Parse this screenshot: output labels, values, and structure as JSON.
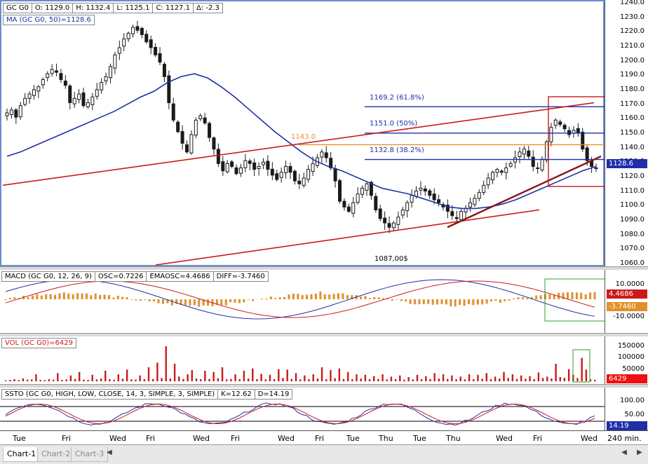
{
  "price_header": {
    "symbol": "GC G0",
    "open": "O: 1129.0",
    "high": "H: 1132.4",
    "low": "L: 1125.1",
    "close": "C: 1127.1",
    "change": "Δ: -2.3"
  },
  "ma_label": "MA (GC G0, 50)=1128.6",
  "fib": {
    "f618": "1169.2 (61.8%)",
    "f50": "1151.0 (50%)",
    "f382": "1132.8 (38.2%)",
    "level": "1143.0",
    "low_label": "1087,00$"
  },
  "price_axis": {
    "ticks": [
      "1240.0",
      "1230.0",
      "1220.0",
      "1210.0",
      "1200.0",
      "1190.0",
      "1180.0",
      "1170.0",
      "1160.0",
      "1150.0",
      "1140.0",
      "1130.0",
      "1120.0",
      "1110.0",
      "1100.0",
      "1090.0",
      "1080.0",
      "1070.0",
      "1060.0"
    ],
    "last": "1128.6"
  },
  "macd": {
    "header": [
      "MACD (GC G0, 12, 26, 9)",
      "OSC=0.7226",
      "EMAOSC=4.4686",
      "DIFF=-3.7460"
    ],
    "ticks": [
      "10.0000",
      "-10.0000"
    ],
    "tag_pos": "4.4686",
    "tag_neg": "-3.7460"
  },
  "vol": {
    "header": "VOL (GC G0)=6429",
    "ticks": [
      "150000",
      "100000",
      "50000"
    ],
    "tag": "6429"
  },
  "ssto": {
    "header": [
      "SSTO (GC G0, HIGH, LOW, CLOSE, 14, 3, SIMPLE, 3, SIMPLE)",
      "K=12.62",
      "D=14.19"
    ],
    "ticks": [
      "100.00",
      "50.00"
    ],
    "tag": "14.19"
  },
  "x_axis": {
    "labels": [
      "Tue",
      "Fri",
      "Wed",
      "Fri",
      "Wed",
      "Fri",
      "Wed",
      "Fri",
      "Tue",
      "Thu",
      "Tue",
      "Thu",
      "Wed",
      "Fri",
      "Wed"
    ],
    "interval": "240 min."
  },
  "tabs": [
    "Chart-1",
    "Chart-2",
    "Chart-3"
  ],
  "colors": {
    "candle": "#1a1a1a",
    "ma": "#1f2fa8",
    "trend": "#cc1a1a",
    "fib_blue": "#1c2fb0",
    "fib_orange": "#f08c28",
    "vol_bar": "#cc1a1a",
    "macd_hist": "#e0902a",
    "highlight": "#cc1a1a",
    "highlight_green": "#2aa02a"
  },
  "chart_data": {
    "type": "candlestick",
    "symbol": "GC G0",
    "interval": "240 min.",
    "ylim": [
      1060,
      1240
    ],
    "close_series": [
      1165,
      1167,
      1162,
      1170,
      1175,
      1178,
      1181,
      1183,
      1188,
      1192,
      1195,
      1193,
      1188,
      1184,
      1172,
      1175,
      1178,
      1170,
      1172,
      1176,
      1181,
      1186,
      1190,
      1197,
      1205,
      1210,
      1216,
      1220,
      1224,
      1222,
      1219,
      1214,
      1210,
      1205,
      1200,
      1190,
      1172,
      1160,
      1152,
      1144,
      1138,
      1150,
      1160,
      1163,
      1158,
      1148,
      1140,
      1130,
      1125,
      1130,
      1128,
      1123,
      1127,
      1132,
      1130,
      1126,
      1128,
      1131,
      1126,
      1122,
      1119,
      1124,
      1128,
      1124,
      1118,
      1116,
      1120,
      1126,
      1130,
      1134,
      1138,
      1134,
      1127,
      1118,
      1104,
      1100,
      1097,
      1103,
      1109,
      1113,
      1116,
      1108,
      1098,
      1092,
      1089,
      1086,
      1089,
      1093,
      1098,
      1103,
      1108,
      1111,
      1113,
      1111,
      1108,
      1105,
      1103,
      1100,
      1097,
      1094,
      1092,
      1097,
      1099,
      1103,
      1106,
      1110,
      1115,
      1120,
      1124,
      1126,
      1124,
      1127,
      1130,
      1134,
      1138,
      1140,
      1135,
      1128,
      1127,
      1133,
      1145,
      1155,
      1160,
      1157,
      1154,
      1150,
      1153,
      1151,
      1140,
      1132,
      1128,
      1127
    ],
    "ma50_series": [
      1135,
      1138,
      1142,
      1146,
      1150,
      1154,
      1158,
      1162,
      1166,
      1171,
      1176,
      1180,
      1186,
      1190,
      1192,
      1189,
      1183,
      1176,
      1168,
      1160,
      1152,
      1145,
      1138,
      1132,
      1128,
      1125,
      1121,
      1117,
      1113,
      1111,
      1109,
      1106,
      1103,
      1100,
      1099,
      1099,
      1100,
      1102,
      1105,
      1109,
      1113,
      1117,
      1121,
      1125,
      1128
    ],
    "fib_levels": [
      {
        "label": "1169.2 (61.8%)",
        "value": 1169.2
      },
      {
        "label": "1151.0 (50%)",
        "value": 1151.0
      },
      {
        "label": "1132.8 (38.2%)",
        "value": 1132.8
      },
      {
        "label": "1143.0",
        "value": 1143.0
      }
    ],
    "swing_low": {
      "label": "1087,00$",
      "value": 1087.0
    },
    "last_price": 1128.6,
    "macd": {
      "osc": 0.7226,
      "emaosc": 4.4686,
      "diff": -3.746,
      "ylim": [
        -10,
        10
      ]
    },
    "volume": {
      "last": 6429,
      "ylim": [
        0,
        150000
      ],
      "bars": [
        4000,
        6000,
        9000,
        5000,
        12000,
        7000,
        8000,
        30000,
        6000,
        5000,
        9000,
        7000,
        35000,
        6000,
        8000,
        25000,
        10000,
        40000,
        7000,
        6000,
        28000,
        8000,
        12000,
        45000,
        9000,
        7000,
        30000,
        11000,
        50000,
        8000,
        7000,
        25000,
        9000,
        60000,
        10000,
        80000,
        14000,
        150000,
        12000,
        75000,
        20000,
        10000,
        30000,
        48000,
        12000,
        9000,
        45000,
        10000,
        40000,
        13000,
        60000,
        8000,
        10000,
        30000,
        9000,
        45000,
        12000,
        55000,
        9000,
        32000,
        8000,
        28000,
        9000,
        52000,
        14000,
        50000,
        10000,
        35000,
        8000,
        25000,
        9000,
        30000,
        12000,
        60000,
        9000,
        48000,
        13000,
        55000,
        10000,
        40000,
        9000,
        30000,
        12000,
        28000,
        9000,
        22000,
        10000,
        30000,
        8000,
        20000,
        9000,
        25000,
        7000,
        18000,
        8000,
        28000,
        9000,
        22000,
        10000,
        35000,
        12000,
        30000,
        10000,
        25000,
        9000,
        20000,
        8000,
        30000,
        9000,
        28000,
        11000,
        35000,
        9000,
        20000,
        12000,
        40000,
        14000,
        30000,
        10000,
        25000,
        11000,
        22000,
        9000,
        38000,
        14000,
        20000,
        12000,
        75000,
        18000,
        15000,
        52000,
        28000,
        14000,
        100000,
        50000,
        8000,
        6429
      ]
    },
    "stochastic": {
      "k": 12.62,
      "d": 14.19,
      "ylim": [
        0,
        100
      ]
    }
  }
}
